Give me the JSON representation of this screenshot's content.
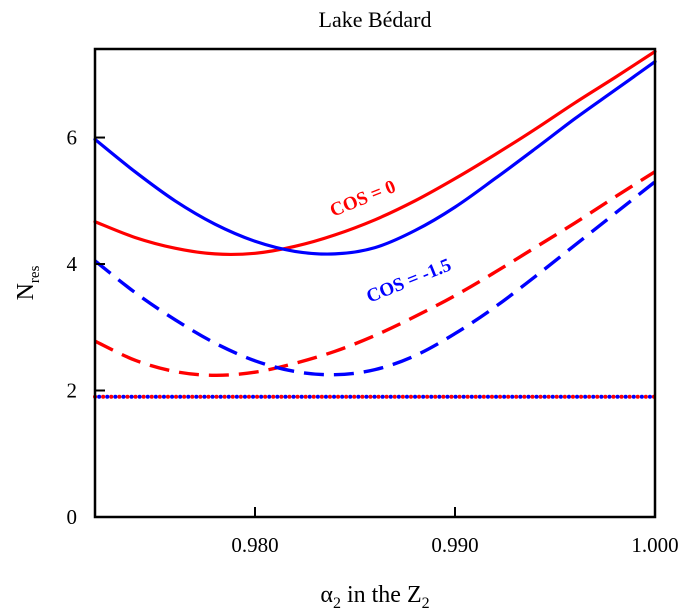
{
  "chart_data": {
    "type": "line",
    "title": "Lake Bédard",
    "xlabel": {
      "symbol": "α",
      "sub": "2",
      "mid": " in the Z",
      "sub2": "2"
    },
    "ylabel": {
      "main": "N",
      "sub": "res"
    },
    "xlim": [
      0.972,
      1.0
    ],
    "ylim": [
      0,
      7.4
    ],
    "xticks": [
      0.98,
      0.99,
      1.0
    ],
    "xtick_labels": [
      "0.980",
      "0.990",
      "1.000"
    ],
    "yticks": [
      0,
      2,
      4,
      6
    ],
    "ytick_labels": [
      "0",
      "2",
      "4",
      "6"
    ],
    "grid": false,
    "colors": {
      "red": "#ff0000",
      "blue": "#0000ff"
    },
    "series": [
      {
        "name": "COS = 0",
        "color": "#ff0000",
        "style": "solid",
        "x": [
          0.972,
          0.974,
          0.976,
          0.978,
          0.98,
          0.982,
          0.984,
          0.986,
          0.988,
          0.99,
          0.992,
          0.994,
          0.996,
          0.998,
          1.0
        ],
        "values": [
          4.67,
          4.42,
          4.25,
          4.16,
          4.17,
          4.28,
          4.46,
          4.7,
          5.0,
          5.35,
          5.73,
          6.13,
          6.55,
          6.95,
          7.36
        ]
      },
      {
        "name": "COS = -1.5",
        "color": "#0000ff",
        "style": "solid",
        "x": [
          0.972,
          0.974,
          0.976,
          0.978,
          0.98,
          0.982,
          0.984,
          0.986,
          0.988,
          0.99,
          0.992,
          0.994,
          0.996,
          0.998,
          1.0
        ],
        "values": [
          5.97,
          5.46,
          5.0,
          4.63,
          4.36,
          4.2,
          4.16,
          4.26,
          4.53,
          4.9,
          5.35,
          5.82,
          6.3,
          6.75,
          7.2
        ]
      },
      {
        "color": "#ff0000",
        "style": "dashed",
        "x": [
          0.972,
          0.974,
          0.976,
          0.978,
          0.98,
          0.982,
          0.984,
          0.986,
          0.988,
          0.99,
          0.992,
          0.994,
          0.996,
          0.998,
          1.0
        ],
        "values": [
          2.78,
          2.48,
          2.3,
          2.24,
          2.29,
          2.43,
          2.62,
          2.87,
          3.17,
          3.5,
          3.87,
          4.26,
          4.65,
          5.06,
          5.46
        ]
      },
      {
        "color": "#0000ff",
        "style": "dashed",
        "x": [
          0.972,
          0.974,
          0.976,
          0.978,
          0.98,
          0.982,
          0.984,
          0.986,
          0.988,
          0.99,
          0.992,
          0.994,
          0.996,
          0.998,
          1.0
        ],
        "values": [
          4.05,
          3.55,
          3.12,
          2.75,
          2.47,
          2.3,
          2.25,
          2.33,
          2.55,
          2.9,
          3.32,
          3.8,
          4.3,
          4.8,
          5.3
        ]
      },
      {
        "color": "#ff0000",
        "style": "dotted",
        "x": [
          0.972,
          1.0
        ],
        "values": [
          1.9,
          1.9
        ]
      },
      {
        "color": "#0000ff",
        "style": "dotted",
        "x": [
          0.972,
          1.0
        ],
        "values": [
          1.9,
          1.9
        ]
      }
    ],
    "annotations": [
      {
        "text": "COS = 0",
        "color": "#ff0000",
        "x": 0.9855,
        "y": 4.95,
        "angle": -22
      },
      {
        "text": "COS = -1.5",
        "color": "#0000ff",
        "x": 0.9878,
        "y": 3.65,
        "angle": -22
      }
    ]
  }
}
